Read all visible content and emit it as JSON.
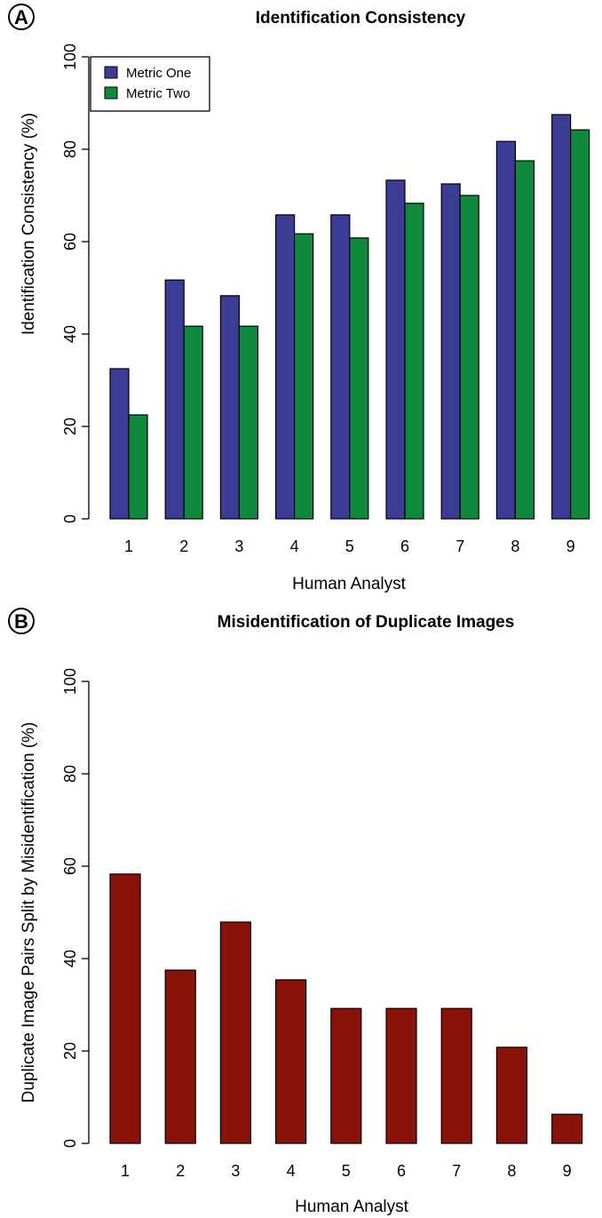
{
  "colors": {
    "metric_one": "#3b3c94",
    "metric_two": "#0f8a3d",
    "misidentification": "#8a1208"
  },
  "chart_data": [
    {
      "type": "bar",
      "panel": "A",
      "title": "Identification Consistency",
      "xlabel": "Human Analyst",
      "ylabel": "Identification Consistency (%)",
      "ylim": [
        0,
        100
      ],
      "yticks": [
        0,
        20,
        40,
        60,
        80,
        100
      ],
      "categories": [
        "1",
        "2",
        "3",
        "4",
        "5",
        "6",
        "7",
        "8",
        "9"
      ],
      "series": [
        {
          "name": "Metric One",
          "values": [
            32.5,
            51.7,
            48.3,
            65.8,
            65.8,
            73.3,
            72.5,
            81.7,
            87.5
          ]
        },
        {
          "name": "Metric Two",
          "values": [
            22.5,
            41.7,
            41.7,
            61.7,
            60.8,
            68.3,
            70.0,
            77.5,
            84.2
          ]
        }
      ],
      "legend": "top-left",
      "grid": false
    },
    {
      "type": "bar",
      "panel": "B",
      "title": "Misidentification of Duplicate Images",
      "xlabel": "Human Analyst",
      "ylabel": "Duplicate Image Pairs Split by Misidentification (%)",
      "ylim": [
        0,
        100
      ],
      "yticks": [
        0,
        20,
        40,
        60,
        80,
        100
      ],
      "categories": [
        "1",
        "2",
        "3",
        "4",
        "5",
        "6",
        "7",
        "8",
        "9"
      ],
      "values": [
        58.3,
        37.5,
        47.9,
        35.4,
        29.2,
        29.2,
        29.2,
        20.8,
        6.3
      ],
      "grid": false
    }
  ]
}
